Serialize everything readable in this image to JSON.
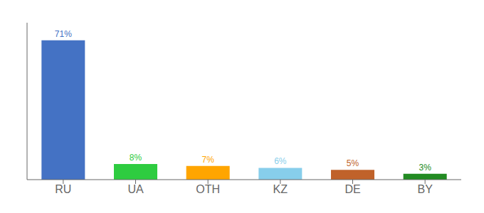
{
  "chart_data": {
    "type": "bar",
    "categories": [
      "RU",
      "UA",
      "OTH",
      "KZ",
      "DE",
      "BY"
    ],
    "values": [
      71,
      8,
      7,
      6,
      5,
      3
    ],
    "value_labels": [
      "71%",
      "8%",
      "7%",
      "6%",
      "5%",
      "3%"
    ],
    "colors": [
      "#4472C4",
      "#2ECC40",
      "#FFA500",
      "#87CEEB",
      "#C0622A",
      "#228B22"
    ],
    "ylim": [
      0,
      80
    ],
    "data_labels": true,
    "tick_labels": "x",
    "grid": false
  }
}
